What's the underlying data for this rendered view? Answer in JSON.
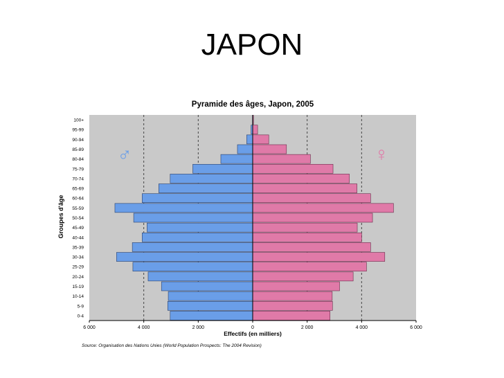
{
  "slide": {
    "title": "JAPON"
  },
  "chart_data": {
    "type": "bar",
    "orientation": "horizontal",
    "title": "Pyramide des âges, Japon, 2005",
    "xlabel": "Effectifs (en milliers)",
    "ylabel": "Groupes d'âge",
    "source": "Source: Organisation des Nations Unies (World Population Prospects: The 2004 Revision)",
    "xlim": [
      -6000,
      6000
    ],
    "xticks": [
      -6000,
      -4000,
      -2000,
      0,
      2000,
      4000,
      6000
    ],
    "xtick_labels": [
      "6 000",
      "4 000",
      "2 000",
      "0",
      "2 000",
      "4 000",
      "6 000"
    ],
    "grid": true,
    "categories": [
      "100+",
      "95-99",
      "90-94",
      "85-89",
      "80-84",
      "75-79",
      "70-74",
      "65-69",
      "60-64",
      "55-59",
      "50-54",
      "45-49",
      "40-44",
      "35-39",
      "30-34",
      "25-29",
      "20-24",
      "15-19",
      "10-14",
      "5-9",
      "0-4"
    ],
    "series": [
      {
        "name": "♂",
        "color": "#6a9ee8",
        "values": [
          10,
          60,
          220,
          560,
          1170,
          2200,
          3030,
          3450,
          4060,
          5060,
          4370,
          3880,
          4060,
          4420,
          5000,
          4400,
          3840,
          3350,
          3100,
          3120,
          3030
        ]
      },
      {
        "name": "♀",
        "color": "#e07aa8",
        "values": [
          30,
          180,
          590,
          1240,
          2120,
          2950,
          3550,
          3830,
          4330,
          5170,
          4400,
          3840,
          4000,
          4330,
          4850,
          4180,
          3690,
          3190,
          2920,
          2930,
          2840
        ]
      }
    ],
    "legend": {
      "male_symbol": "♂",
      "female_symbol": "♀",
      "male_color": "#6a9ee8",
      "female_color": "#e07aa8"
    }
  }
}
